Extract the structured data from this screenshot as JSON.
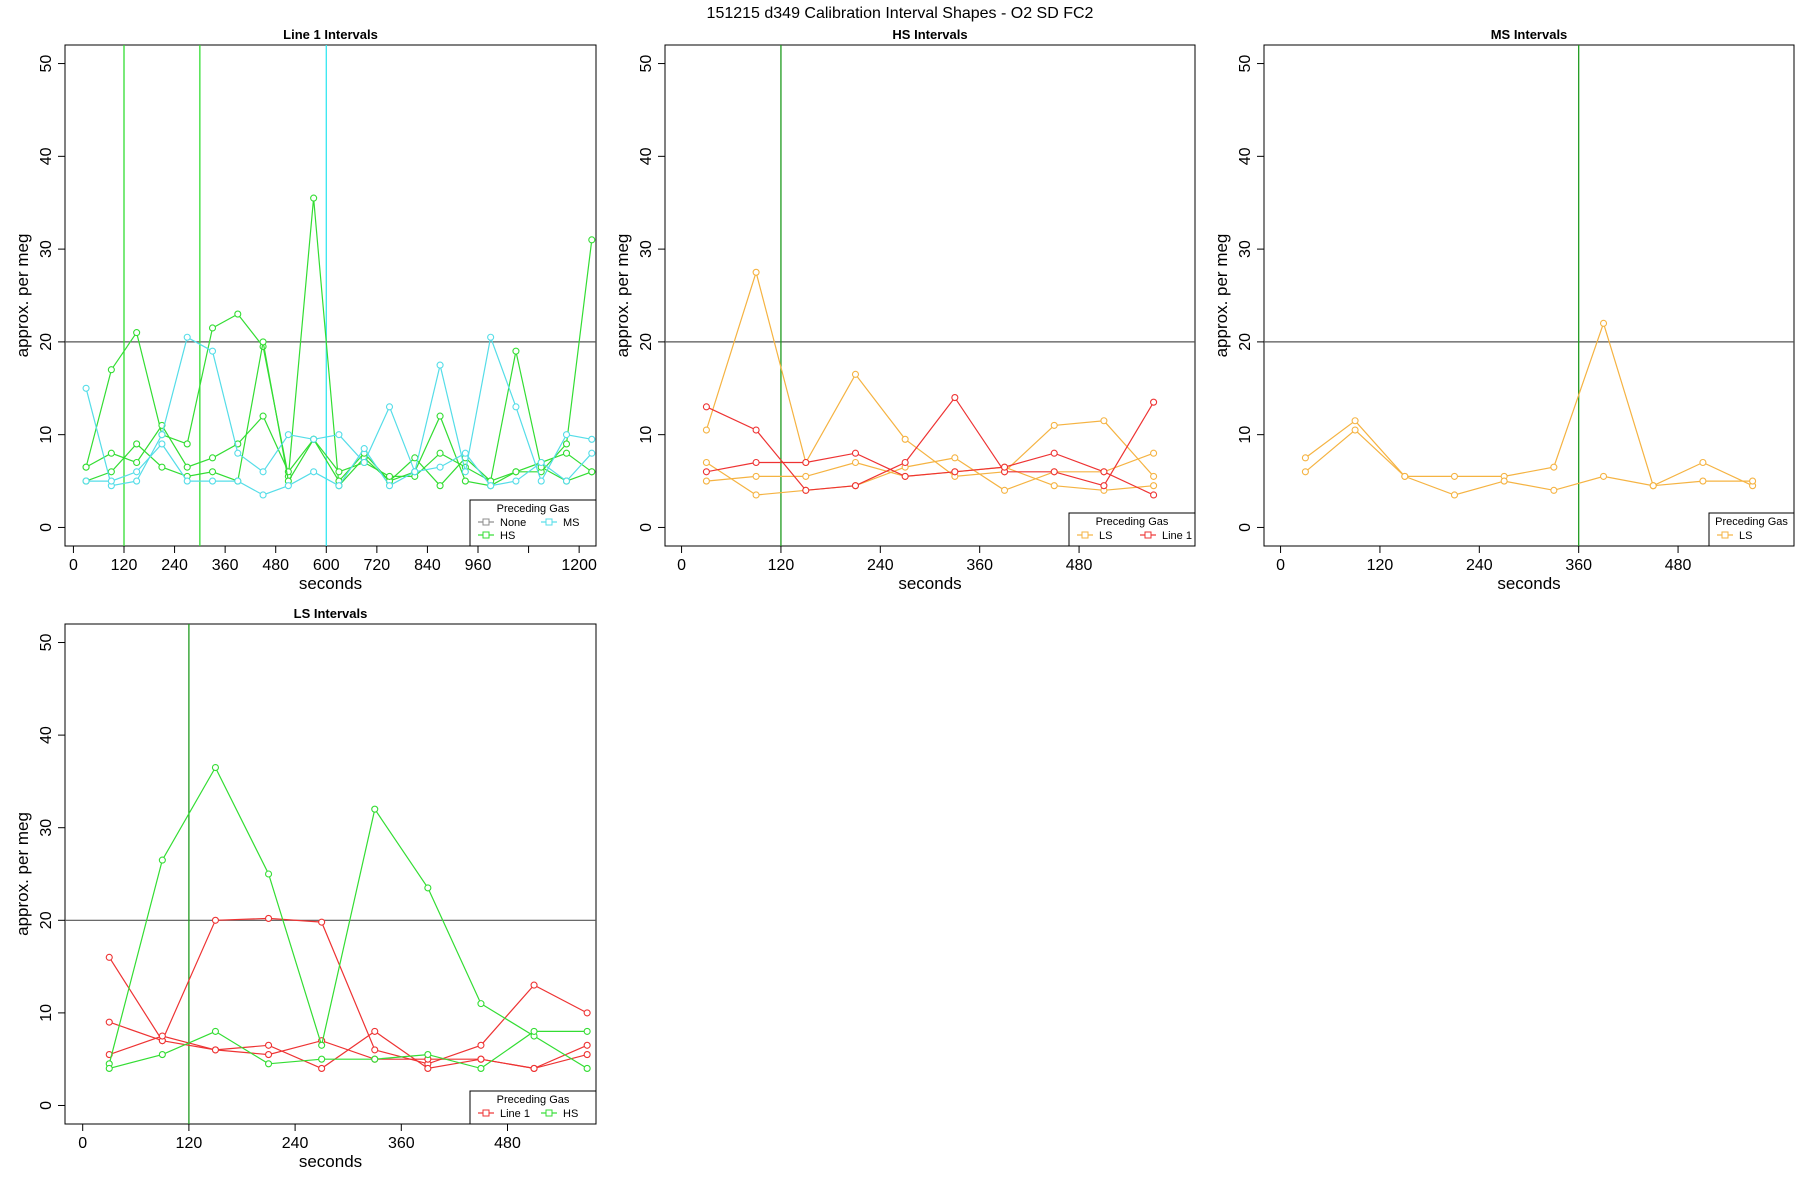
{
  "figure_title": "151215   d349   Calibration Interval Shapes - O2 SD FC2",
  "colors": {
    "None": "#8c8c8c",
    "HS": "#33dd33",
    "MS": "#55dde8",
    "LS": "#f5b342",
    "Line 1": "#ee3333",
    "vline": "#1e9a1e",
    "vline_cyan": "#33e6f0",
    "hline": "#555555"
  },
  "chart_data": [
    {
      "type": "line",
      "title": "Line 1 Intervals",
      "xlabel": "seconds",
      "ylabel": "approx. per meg",
      "xlim": [
        -20,
        1240
      ],
      "ylim": [
        -2,
        52
      ],
      "xticks": [
        0,
        120,
        240,
        360,
        480,
        600,
        720,
        840,
        960,
        1200
      ],
      "yticks": [
        0,
        10,
        20,
        30,
        40,
        50
      ],
      "hline": 20,
      "vlines": [
        {
          "x": 120,
          "color": "HS"
        },
        {
          "x": 300,
          "color": "HS"
        },
        {
          "x": 600,
          "color": "MS"
        }
      ],
      "legend": {
        "title": "Preceding Gas",
        "entries": [
          "None",
          "HS",
          "MS"
        ],
        "position": "bottom-right"
      },
      "series": [
        {
          "name": "HS",
          "x": [
            30,
            90,
            150,
            210,
            270,
            330,
            390,
            450,
            510,
            570,
            630,
            690,
            750,
            810,
            870,
            930,
            990,
            1050,
            1110,
            1170,
            1230
          ],
          "values": [
            6.5,
            17,
            21,
            10,
            9,
            21.5,
            23,
            19.5,
            5.5,
            35.5,
            4.5,
            7.5,
            5,
            7.5,
            4.5,
            7.5,
            5,
            6,
            6,
            9,
            31
          ]
        },
        {
          "name": "HS",
          "x": [
            30,
            90,
            150,
            210,
            270,
            330,
            390,
            450,
            510,
            570,
            630,
            690,
            750,
            810,
            870,
            930,
            990,
            1050,
            1110,
            1170,
            1230
          ],
          "values": [
            6.5,
            8,
            7,
            11,
            6.5,
            7.5,
            9,
            12,
            6,
            9.5,
            5,
            8,
            5,
            6,
            12,
            5,
            4.5,
            6,
            7,
            8,
            6
          ]
        },
        {
          "name": "HS",
          "x": [
            30,
            90,
            150,
            210,
            270,
            330,
            390,
            450,
            510,
            570,
            630,
            690,
            750,
            810,
            870,
            930,
            990,
            1050,
            1110,
            1170,
            1230
          ],
          "values": [
            5,
            6,
            9,
            6.5,
            5.5,
            6,
            5,
            20,
            5,
            9.5,
            6,
            7,
            5.5,
            5.5,
            8,
            6.5,
            5,
            19,
            6.5,
            5,
            6
          ]
        },
        {
          "name": "MS",
          "x": [
            30,
            90,
            150,
            210,
            270,
            330,
            390,
            450,
            510,
            570,
            630,
            690,
            750,
            810,
            870,
            930,
            990,
            1050,
            1110,
            1170,
            1230
          ],
          "values": [
            15,
            4.5,
            5,
            10,
            20.5,
            19,
            8,
            6,
            10,
            9.5,
            10,
            7,
            13,
            6,
            17.5,
            6,
            20.5,
            13,
            5,
            10,
            9.5
          ]
        },
        {
          "name": "MS",
          "x": [
            30,
            90,
            150,
            210,
            270,
            330,
            390,
            450,
            510,
            570,
            630,
            690,
            750,
            810,
            870,
            930,
            990,
            1050,
            1110,
            1170,
            1230
          ],
          "values": [
            5,
            5,
            6,
            9,
            5,
            5,
            5,
            3.5,
            4.5,
            6,
            4.5,
            8.5,
            4.5,
            6,
            6.5,
            8,
            4.5,
            5,
            7,
            5,
            8
          ]
        }
      ]
    },
    {
      "type": "line",
      "title": "HS Intervals",
      "xlabel": "seconds",
      "ylabel": "approx. per meg",
      "xlim": [
        -20,
        620
      ],
      "ylim": [
        -2,
        52
      ],
      "xticks": [
        0,
        120,
        240,
        360,
        480
      ],
      "yticks": [
        0,
        10,
        20,
        30,
        40,
        50
      ],
      "hline": 20,
      "vlines": [
        {
          "x": 120,
          "color": "HS"
        }
      ],
      "legend": {
        "title": "Preceding Gas",
        "entries": [
          "LS",
          "Line 1"
        ],
        "position": "bottom-right"
      },
      "series": [
        {
          "name": "LS",
          "x": [
            30,
            90,
            150,
            210,
            270,
            330,
            390,
            450,
            510,
            570
          ],
          "values": [
            10.5,
            27.5,
            7,
            16.5,
            9.5,
            5.5,
            6,
            11,
            11.5,
            5.5
          ]
        },
        {
          "name": "LS",
          "x": [
            30,
            90,
            150,
            210,
            270,
            330,
            390,
            450,
            510,
            570
          ],
          "values": [
            7,
            3.5,
            4,
            4.5,
            6.5,
            7.5,
            4,
            6,
            6,
            8
          ]
        },
        {
          "name": "LS",
          "x": [
            30,
            90,
            150,
            210,
            270,
            330,
            390,
            450,
            510,
            570
          ],
          "values": [
            5,
            5.5,
            5.5,
            7,
            5.5,
            6,
            6.5,
            4.5,
            4,
            4.5
          ]
        },
        {
          "name": "Line 1",
          "x": [
            30,
            90,
            150,
            210,
            270,
            330,
            390,
            450,
            510,
            570
          ],
          "values": [
            13,
            10.5,
            4,
            4.5,
            7,
            14,
            6,
            6,
            4.5,
            13.5
          ]
        },
        {
          "name": "Line 1",
          "x": [
            30,
            90,
            150,
            210,
            270,
            330,
            390,
            450,
            510,
            570
          ],
          "values": [
            6,
            7,
            7,
            8,
            5.5,
            6,
            6.5,
            8,
            6,
            3.5
          ]
        }
      ]
    },
    {
      "type": "line",
      "title": "MS Intervals",
      "xlabel": "seconds",
      "ylabel": "approx. per meg",
      "xlim": [
        -20,
        620
      ],
      "ylim": [
        -2,
        52
      ],
      "xticks": [
        0,
        120,
        240,
        360,
        480
      ],
      "yticks": [
        0,
        10,
        20,
        30,
        40,
        50
      ],
      "hline": 20,
      "vlines": [
        {
          "x": 360,
          "color": "HS"
        }
      ],
      "legend": {
        "title": "Preceding Gas",
        "entries": [
          "LS"
        ],
        "position": "bottom-right"
      },
      "series": [
        {
          "name": "LS",
          "x": [
            30,
            90,
            150,
            210,
            270,
            330,
            390,
            450,
            510,
            570
          ],
          "values": [
            7.5,
            11.5,
            5.5,
            5.5,
            5.5,
            6.5,
            22,
            4.5,
            7,
            4.5
          ]
        },
        {
          "name": "LS",
          "x": [
            30,
            90,
            150,
            210,
            270,
            330,
            390,
            450,
            510,
            570
          ],
          "values": [
            6,
            10.5,
            5.5,
            3.5,
            5,
            4,
            5.5,
            4.5,
            5,
            5
          ]
        }
      ]
    },
    {
      "type": "line",
      "title": "LS Intervals",
      "xlabel": "seconds",
      "ylabel": "approx. per meg",
      "xlim": [
        -20,
        580
      ],
      "ylim": [
        -2,
        52
      ],
      "xticks": [
        0,
        120,
        240,
        360,
        480
      ],
      "yticks": [
        0,
        10,
        20,
        30,
        40,
        50
      ],
      "hline": 20,
      "vlines": [
        {
          "x": 120,
          "color": "HS"
        }
      ],
      "legend": {
        "title": "Preceding Gas",
        "entries": [
          "Line 1",
          "HS"
        ],
        "position": "bottom-right"
      },
      "series": [
        {
          "name": "Line 1",
          "x": [
            30,
            90,
            150,
            210,
            270,
            330,
            390,
            450,
            510,
            570
          ],
          "values": [
            16,
            7,
            20,
            20.2,
            19.8,
            6,
            4.5,
            6.5,
            13,
            10
          ]
        },
        {
          "name": "Line 1",
          "x": [
            30,
            90,
            150,
            210,
            270,
            330,
            390,
            450,
            510,
            570
          ],
          "values": [
            9,
            7,
            6,
            6.5,
            4,
            8,
            4,
            5,
            4,
            5.5
          ]
        },
        {
          "name": "Line 1",
          "x": [
            30,
            90,
            150,
            210,
            270,
            330,
            390,
            450,
            510,
            570
          ],
          "values": [
            5.5,
            7.5,
            6,
            5.5,
            7,
            5,
            5,
            5,
            4,
            6.5
          ]
        },
        {
          "name": "HS",
          "x": [
            30,
            90,
            150,
            210,
            270,
            330,
            390,
            450,
            510,
            570
          ],
          "values": [
            4.5,
            26.5,
            36.5,
            25,
            6.5,
            32,
            23.5,
            11,
            7.5,
            4
          ]
        },
        {
          "name": "HS",
          "x": [
            30,
            90,
            150,
            210,
            270,
            330,
            390,
            450,
            510,
            570
          ],
          "values": [
            4,
            5.5,
            8,
            4.5,
            5,
            5,
            5.5,
            4,
            8,
            8
          ]
        }
      ]
    }
  ]
}
